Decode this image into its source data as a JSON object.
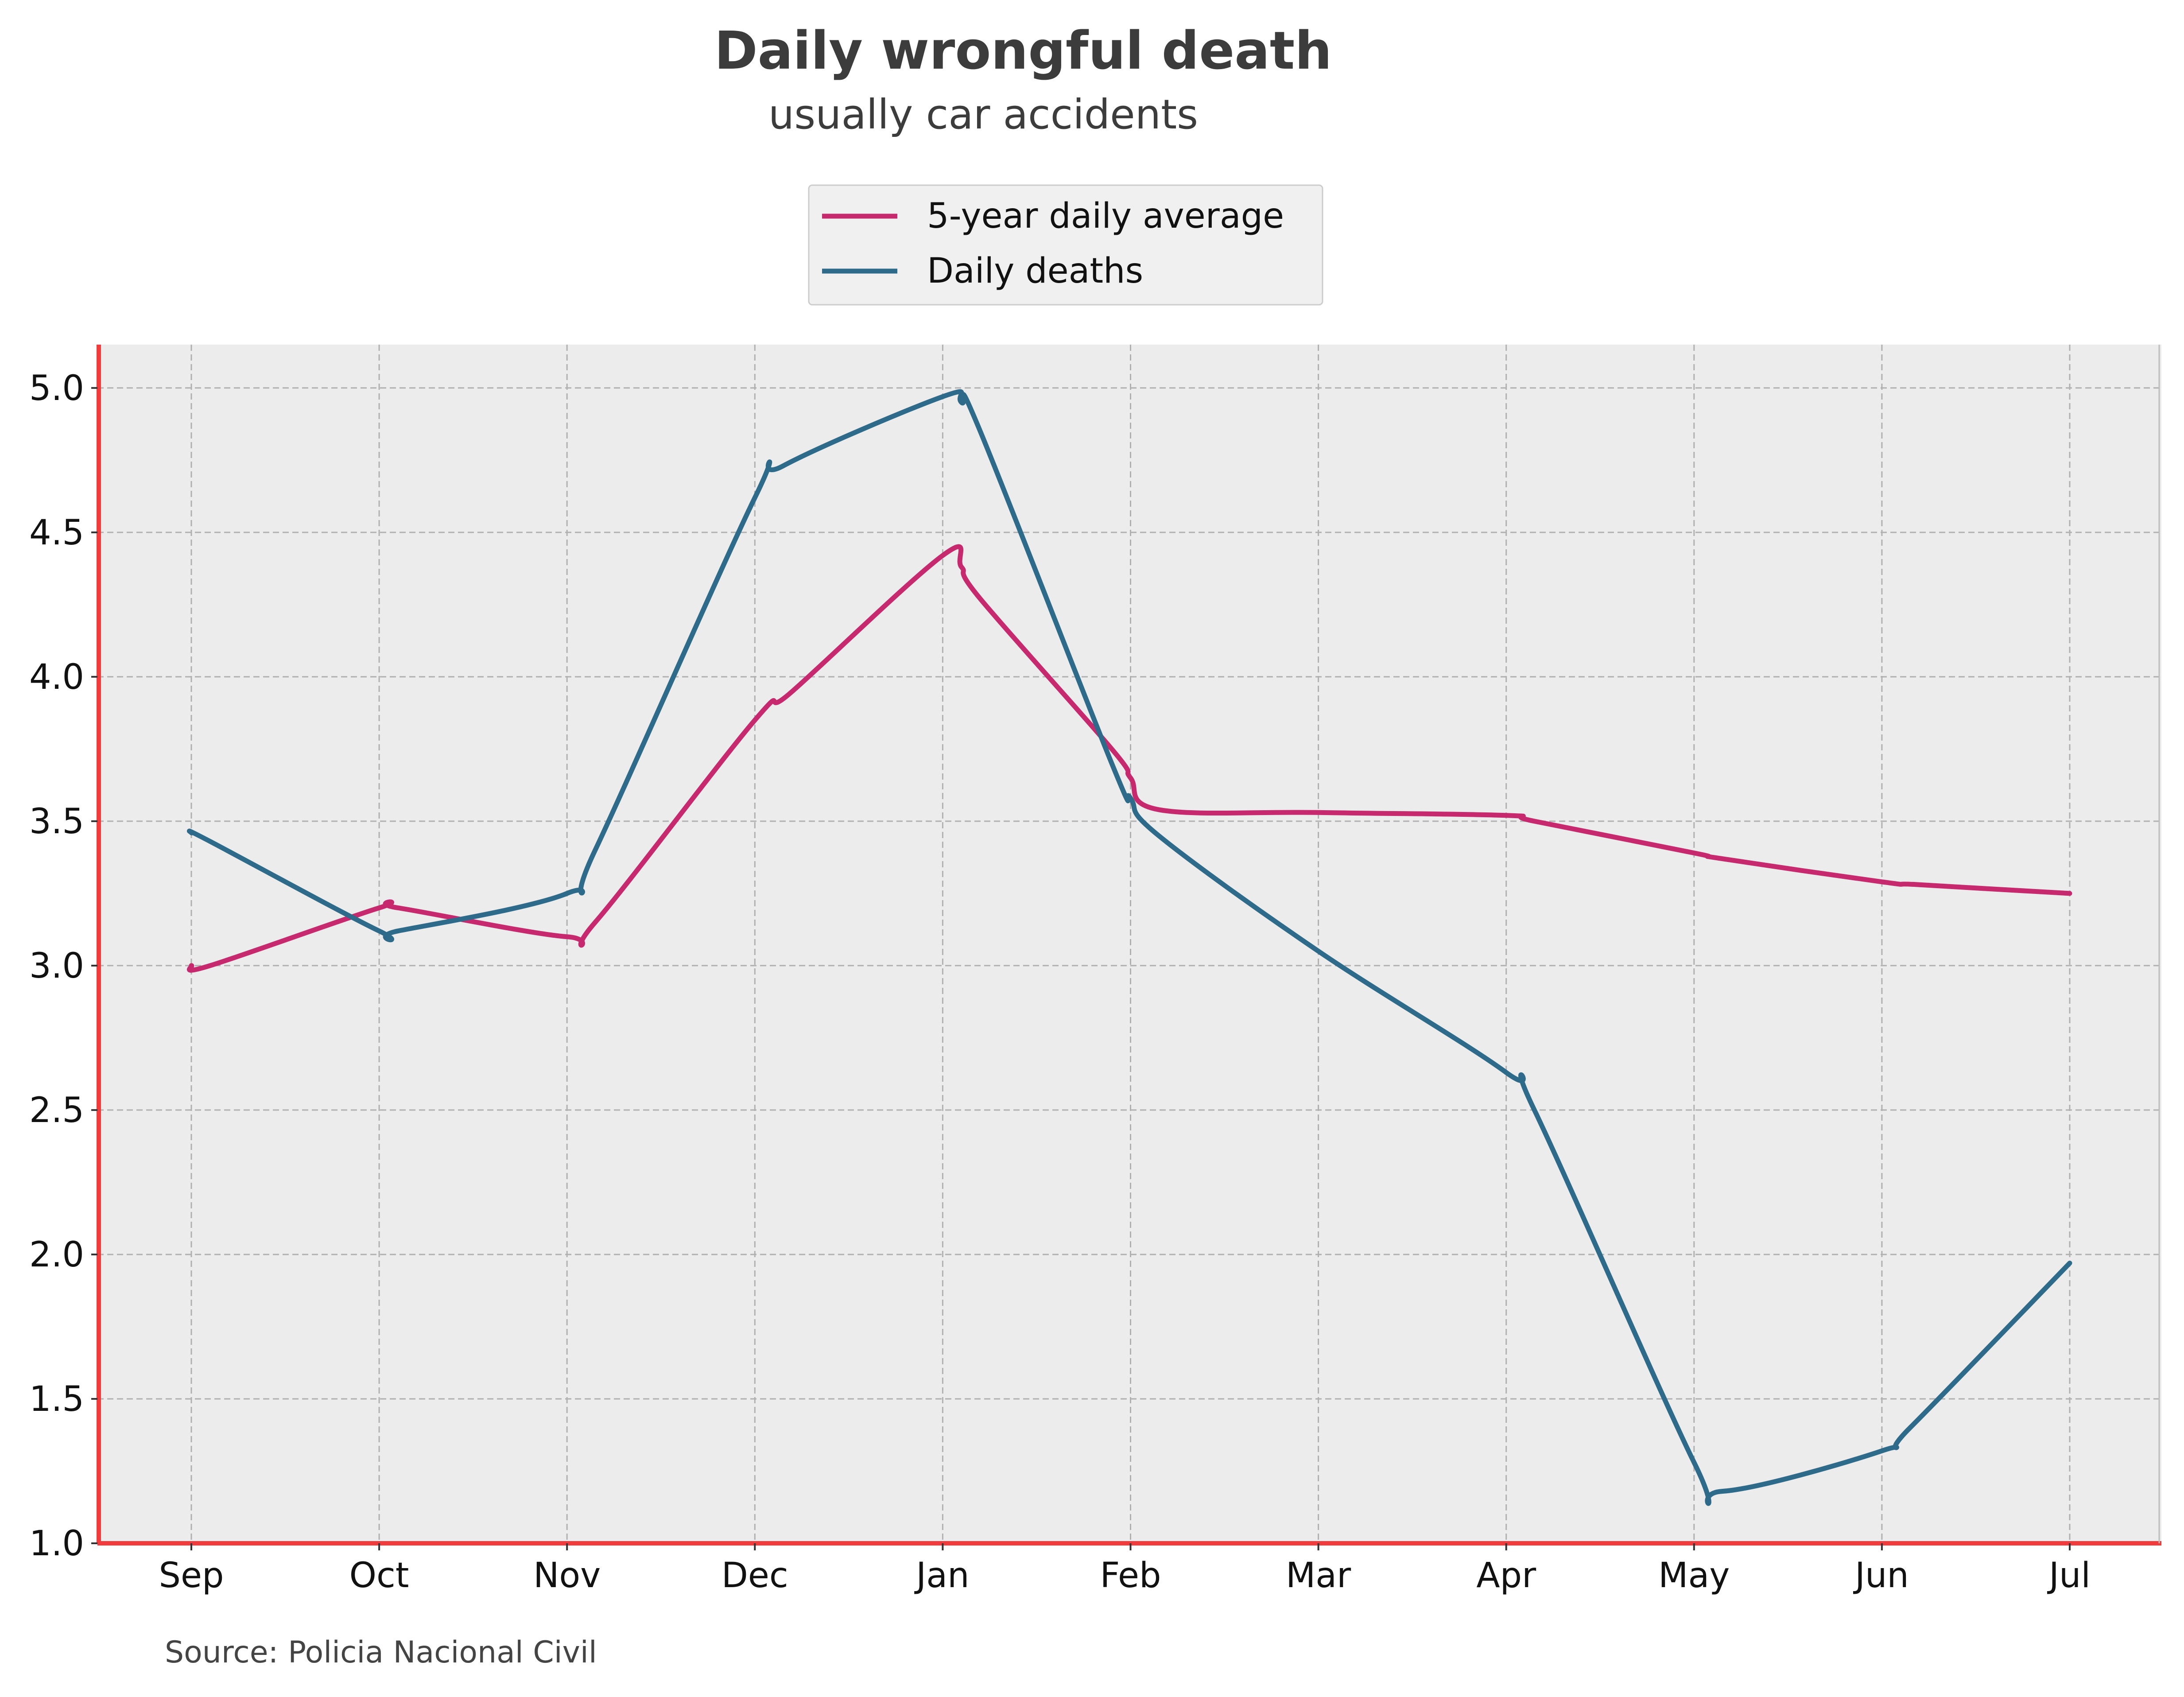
{
  "chart_data": {
    "type": "line",
    "title": "Daily wrongful death",
    "subtitle": "usually car accidents",
    "source": "Source: Policia Nacional Civil",
    "xlabel": "",
    "ylabel": "",
    "categories": [
      "Sep",
      "Oct",
      "Nov",
      "Dec",
      "Jan",
      "Feb",
      "Mar",
      "Apr",
      "May",
      "Jun",
      "Jul"
    ],
    "ylim": [
      1.0,
      5.15
    ],
    "yticks": [
      "1.0",
      "1.5",
      "2.0",
      "2.5",
      "3.0",
      "3.5",
      "4.0",
      "4.5",
      "5.0"
    ],
    "grid": true,
    "legend_position": "top-center",
    "series": [
      {
        "name": "5-year daily average",
        "color": "#c7296e",
        "points": [
          [
            0,
            3.0
          ],
          [
            0.1,
            3.0
          ],
          [
            1,
            3.2
          ],
          [
            1.1,
            3.2
          ],
          [
            2,
            3.1
          ],
          [
            2.15,
            3.15
          ],
          [
            3,
            3.85
          ],
          [
            3.2,
            3.95
          ],
          [
            4,
            4.42
          ],
          [
            4.1,
            4.38
          ],
          [
            4.2,
            4.27
          ],
          [
            4.9,
            3.75
          ],
          [
            5,
            3.65
          ],
          [
            5.15,
            3.54
          ],
          [
            6,
            3.53
          ],
          [
            7,
            3.52
          ],
          [
            7.15,
            3.5
          ],
          [
            8,
            3.39
          ],
          [
            8.15,
            3.37
          ],
          [
            9,
            3.29
          ],
          [
            9.2,
            3.28
          ],
          [
            10,
            3.25
          ]
        ]
      },
      {
        "name": "Daily deaths",
        "color": "#2e6b8a",
        "points": [
          [
            0,
            3.46
          ],
          [
            0.1,
            3.43
          ],
          [
            1,
            3.12
          ],
          [
            1.1,
            3.12
          ],
          [
            2,
            3.25
          ],
          [
            2.15,
            3.4
          ],
          [
            3,
            4.62
          ],
          [
            3.15,
            4.73
          ],
          [
            4,
            4.97
          ],
          [
            4.1,
            4.95
          ],
          [
            4.2,
            4.85
          ],
          [
            4.9,
            3.7
          ],
          [
            5,
            3.58
          ],
          [
            5.15,
            3.45
          ],
          [
            6,
            3.05
          ],
          [
            7,
            2.63
          ],
          [
            7.15,
            2.5
          ],
          [
            8,
            1.28
          ],
          [
            8.15,
            1.18
          ],
          [
            9,
            1.32
          ],
          [
            9.15,
            1.4
          ],
          [
            10,
            1.97
          ]
        ]
      }
    ]
  }
}
